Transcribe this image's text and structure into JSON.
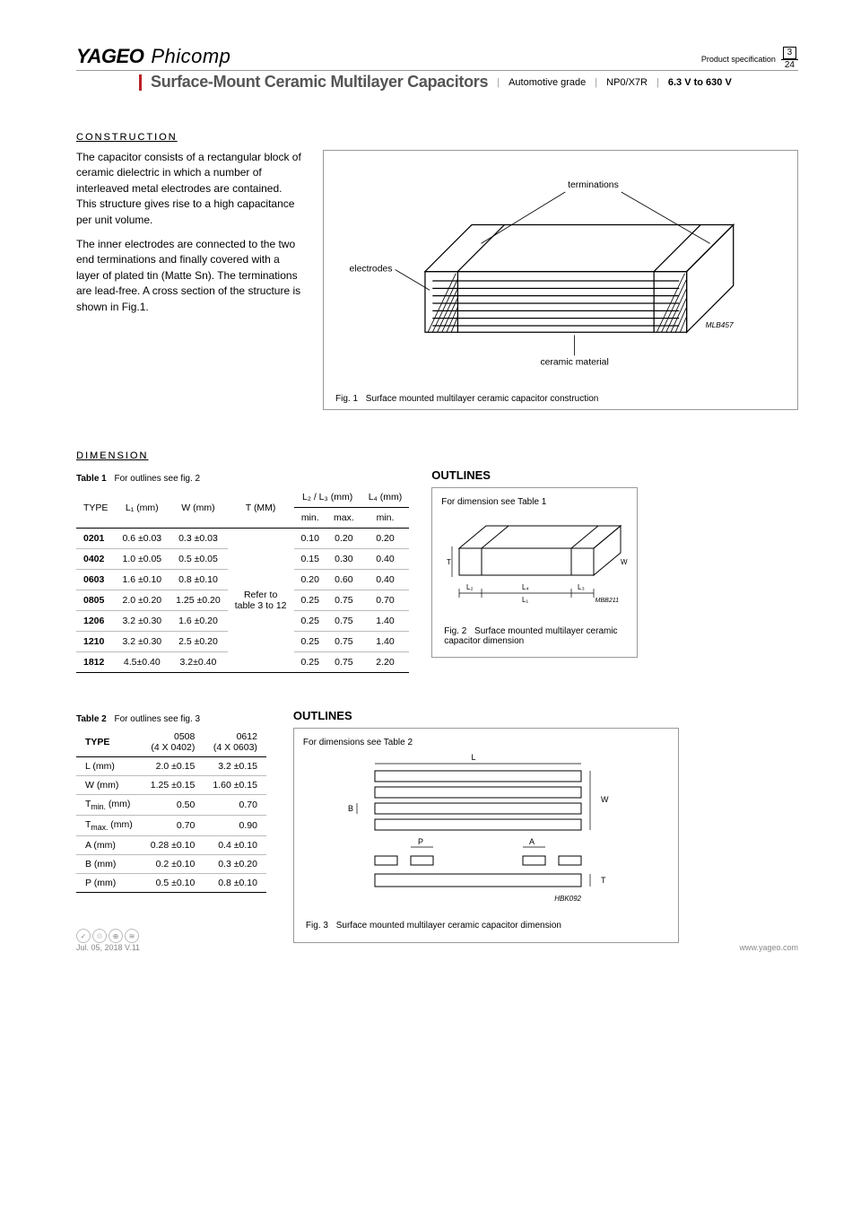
{
  "header": {
    "brand1": "YAGEO",
    "brand2": "Phicomp",
    "prodspec": "Product specification",
    "page_cur": "3",
    "page_tot": "24",
    "title": "Surface-Mount Ceramic Multilayer Capacitors",
    "tag1": "Automotive grade",
    "tag2": "NP0/X7R",
    "tag3": "6.3 V to 630 V"
  },
  "construction": {
    "heading": "CONSTRUCTION",
    "p1": "The capacitor consists of a rectangular block of ceramic dielectric in which a number of interleaved metal electrodes are contained. This structure gives rise to a high capacitance per unit volume.",
    "p2": "The inner electrodes are connected to the two end terminations and finally covered with a layer of plated tin (Matte Sn). The terminations are lead-free. A cross section of the structure is shown in Fig.1."
  },
  "fig1": {
    "label_term": "terminations",
    "label_elec": "electrodes",
    "label_cer": "ceramic material",
    "code": "MLB457",
    "caption_n": "Fig. 1",
    "caption": "Surface mounted multilayer ceramic capacitor construction"
  },
  "dimension": {
    "heading": "DIMENSION",
    "table1": {
      "title_n": "Table 1",
      "title": "For outlines see fig. 2",
      "cols": [
        "TYPE",
        "L₁ (mm)",
        "W (mm)",
        "T (MM)",
        "L₂ / L₃ (mm)",
        "L₄ (mm)"
      ],
      "sub": [
        "min.",
        "max.",
        "min."
      ],
      "t_note": "Refer to table 3 to 12",
      "rows": [
        {
          "type": "0201",
          "l1": "0.6 ±0.03",
          "w": "0.3 ±0.03",
          "l2min": "0.10",
          "l2max": "0.20",
          "l4": "0.20"
        },
        {
          "type": "0402",
          "l1": "1.0 ±0.05",
          "w": "0.5 ±0.05",
          "l2min": "0.15",
          "l2max": "0.30",
          "l4": "0.40"
        },
        {
          "type": "0603",
          "l1": "1.6 ±0.10",
          "w": "0.8 ±0.10",
          "l2min": "0.20",
          "l2max": "0.60",
          "l4": "0.40"
        },
        {
          "type": "0805",
          "l1": "2.0 ±0.20",
          "w": "1.25 ±0.20",
          "l2min": "0.25",
          "l2max": "0.75",
          "l4": "0.70"
        },
        {
          "type": "1206",
          "l1": "3.2 ±0.30",
          "w": "1.6 ±0.20",
          "l2min": "0.25",
          "l2max": "0.75",
          "l4": "1.40"
        },
        {
          "type": "1210",
          "l1": "3.2 ±0.30",
          "w": "2.5 ±0.20",
          "l2min": "0.25",
          "l2max": "0.75",
          "l4": "1.40"
        },
        {
          "type": "1812",
          "l1": "4.5±0.40",
          "w": "3.2±0.40",
          "l2min": "0.25",
          "l2max": "0.75",
          "l4": "2.20"
        }
      ]
    },
    "outlines_h": "OUTLINES",
    "fig2": {
      "note": "For dimension see Table 1",
      "code": "MBB211",
      "caption_n": "Fig. 2",
      "caption": "Surface mounted multilayer ceramic capacitor dimension"
    }
  },
  "sec2": {
    "table2": {
      "title_n": "Table 2",
      "title": "For outlines see fig. 3",
      "head_type": "TYPE",
      "cols": [
        {
          "h1": "0508",
          "h2": "(4 X 0402)"
        },
        {
          "h1": "0612",
          "h2": "(4 X 0603)"
        }
      ],
      "rows": [
        {
          "h": "L (mm)",
          "a": "2.0 ±0.15",
          "b": "3.2 ±0.15"
        },
        {
          "h": "W (mm)",
          "a": "1.25 ±0.15",
          "b": "1.60 ±0.15"
        },
        {
          "h": "Tmin. (mm)",
          "a": "0.50",
          "b": "0.70"
        },
        {
          "h": "Tmax. (mm)",
          "a": "0.70",
          "b": "0.90"
        },
        {
          "h": "A (mm)",
          "a": "0.28 ±0.10",
          "b": "0.4 ±0.10"
        },
        {
          "h": "B (mm)",
          "a": "0.2 ±0.10",
          "b": "0.3 ±0.20"
        },
        {
          "h": "P (mm)",
          "a": "0.5 ±0.10",
          "b": "0.8 ±0.10"
        }
      ]
    },
    "outlines_h": "OUTLINES",
    "fig3": {
      "note": "For dimensions see Table 2",
      "code": "HBK092",
      "caption_n": "Fig. 3",
      "caption": "Surface mounted multilayer ceramic capacitor dimension"
    }
  },
  "footer": {
    "date": "Jul. 05, 2018 V.11",
    "url": "www.yageo.com"
  },
  "colors": {
    "accent": "#b92025",
    "grey": "#555555"
  }
}
